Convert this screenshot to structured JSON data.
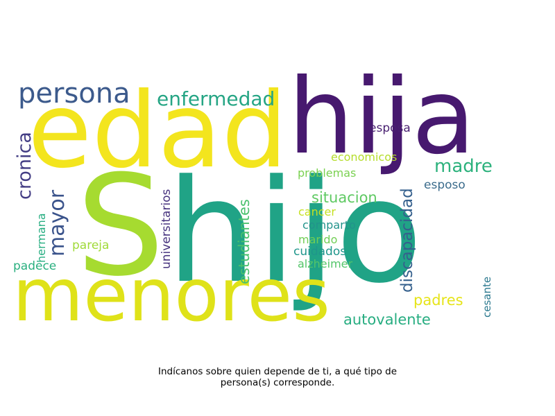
{
  "words": [
    {
      "text": "edad",
      "color": "#f3e51e",
      "rotated": false
    },
    {
      "text": "hija",
      "color": "#47196f",
      "rotated": false
    },
    {
      "text": "S",
      "color": "#a6db30",
      "rotated": false
    },
    {
      "text": "hijo",
      "color": "#20a386",
      "rotated": false
    },
    {
      "text": "menores",
      "color": "#dfe219",
      "rotated": false
    },
    {
      "text": "persona",
      "color": "#3c5a8c",
      "rotated": false
    },
    {
      "text": "enfermedad",
      "color": "#25a584",
      "rotated": false
    },
    {
      "text": "cronica",
      "color": "#433d84",
      "rotated": true
    },
    {
      "text": "mayor",
      "color": "#3a538b",
      "rotated": true
    },
    {
      "text": "madre",
      "color": "#2db27d",
      "rotated": false
    },
    {
      "text": "esposa",
      "color": "#481f70",
      "rotated": false
    },
    {
      "text": "economicos",
      "color": "#b5dd2b",
      "rotated": false
    },
    {
      "text": "problemas",
      "color": "#7ad151",
      "rotated": false
    },
    {
      "text": "esposo",
      "color": "#3b6c8c",
      "rotated": false
    },
    {
      "text": "situacion",
      "color": "#5ec962",
      "rotated": false
    },
    {
      "text": "universitarios",
      "color": "#46327e",
      "rotated": true
    },
    {
      "text": "estudiantes",
      "color": "#4ac16d",
      "rotated": true
    },
    {
      "text": "discapacidad",
      "color": "#35608d",
      "rotated": true
    },
    {
      "text": "cancer",
      "color": "#c5e021",
      "rotated": false
    },
    {
      "text": "comparto",
      "color": "#22938b",
      "rotated": false
    },
    {
      "text": "marido",
      "color": "#71ce55",
      "rotated": false
    },
    {
      "text": "cuidados",
      "color": "#1f968b",
      "rotated": false
    },
    {
      "text": "alzheimer",
      "color": "#53c569",
      "rotated": false
    },
    {
      "text": "hermana",
      "color": "#26ad81",
      "rotated": true
    },
    {
      "text": "pareja",
      "color": "#a0da39",
      "rotated": false
    },
    {
      "text": "padece",
      "color": "#29af7f",
      "rotated": false
    },
    {
      "text": "padres",
      "color": "#e6e419",
      "rotated": false
    },
    {
      "text": "autovalente",
      "color": "#27ad81",
      "rotated": false
    },
    {
      "text": "cesante",
      "color": "#2a788e",
      "rotated": true
    }
  ],
  "caption": {
    "line1": "Indícanos sobre quien depende de ti, a qué tipo de",
    "line2": "persona(s) corresponde."
  }
}
